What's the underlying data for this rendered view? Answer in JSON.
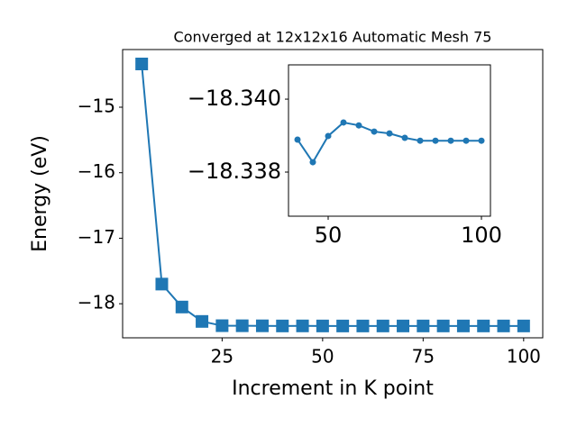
{
  "chart_data": [
    {
      "type": "line",
      "title": "Converged at 12x12x16 Automatic Mesh 75",
      "x_label": "Increment in K point",
      "y_label": "Energy (eV)",
      "x": [
        5,
        10,
        15,
        20,
        25,
        30,
        35,
        40,
        45,
        50,
        55,
        60,
        65,
        70,
        75,
        80,
        85,
        90,
        95,
        100
      ],
      "series": [
        {
          "name": "Energy",
          "color": "#1f77b4",
          "marker": "square",
          "values": [
            -14.34,
            -17.7,
            -18.05,
            -18.27,
            -18.335,
            -18.336,
            -18.337,
            -18.33889,
            -18.33827,
            -18.33899,
            -18.33936,
            -18.33928,
            -18.33911,
            -18.33906,
            -18.33894,
            -18.33886,
            -18.33886,
            -18.33886,
            -18.33886,
            -18.33886
          ]
        }
      ],
      "xlim": [
        0.25,
        104.75
      ],
      "ylim": [
        -18.52,
        -14.12
      ],
      "xticks": [
        25,
        50,
        75,
        100
      ],
      "yticks": [
        {
          "value": -18,
          "label": "−18"
        },
        {
          "value": -17,
          "label": "−17"
        },
        {
          "value": -16,
          "label": "−16"
        },
        {
          "value": -15,
          "label": "−15"
        }
      ]
    },
    {
      "type": "line",
      "x": [
        40,
        45,
        50,
        55,
        60,
        65,
        70,
        75,
        80,
        85,
        90,
        95,
        100
      ],
      "series": [
        {
          "name": "Energy",
          "color": "#1f77b4",
          "marker": "circle",
          "values": [
            -18.33889,
            -18.33827,
            -18.33899,
            -18.33936,
            -18.33928,
            -18.33911,
            -18.33906,
            -18.33894,
            -18.33886,
            -18.33886,
            -18.33886,
            -18.33886,
            -18.33886
          ]
        }
      ],
      "xlim": [
        37.06,
        102.94
      ],
      "ylim": [
        -18.33679,
        -18.34094
      ],
      "xticks": [
        50,
        100
      ],
      "yticks": [
        {
          "value": -18.338,
          "label": "−18.338"
        },
        {
          "value": -18.34,
          "label": "−18.340"
        }
      ]
    }
  ]
}
